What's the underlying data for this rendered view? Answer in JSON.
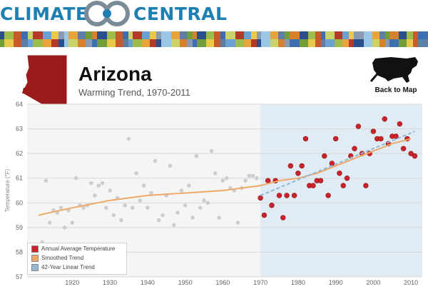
{
  "brand": {
    "left_word": "CLIMATE",
    "right_word": "CENTRAL",
    "brand_color": "#1e7fb3"
  },
  "header": {
    "state_name": "Arizona",
    "subtitle": "Warming Trend, 1970-2011",
    "back_to_map": "Back to Map",
    "state_color": "#9b1b1b"
  },
  "chart_data": {
    "type": "scatter",
    "title": "",
    "ylabel": "Temperature (°F)",
    "xlabel": "",
    "xlim": [
      1908,
      2013
    ],
    "ylim": [
      57,
      64
    ],
    "x_ticks": [
      1920,
      1930,
      1940,
      1950,
      1960,
      1970,
      1980,
      1990,
      2000,
      2010
    ],
    "y_ticks": [
      57,
      58,
      59,
      60,
      61,
      62,
      63,
      64
    ],
    "highlight_start": 1970,
    "grid": true,
    "legend_position": "bottom-left",
    "legend": [
      {
        "label": "Annual Average Temperature",
        "color": "#cc2229"
      },
      {
        "label": "Smoothed Trend",
        "color": "#f0a868"
      },
      {
        "label": "42-Year Linear Trend",
        "color": "#8fb8d8"
      }
    ],
    "series": [
      {
        "name": "Annual Average Temperature",
        "color": "#cc2229",
        "past_color": "#cdcdcd",
        "x": [
          1912,
          1913,
          1914,
          1915,
          1916,
          1917,
          1918,
          1919,
          1920,
          1921,
          1922,
          1923,
          1924,
          1925,
          1926,
          1927,
          1928,
          1929,
          1930,
          1931,
          1932,
          1933,
          1934,
          1935,
          1936,
          1937,
          1938,
          1939,
          1940,
          1941,
          1942,
          1943,
          1944,
          1945,
          1946,
          1947,
          1948,
          1949,
          1950,
          1951,
          1952,
          1953,
          1954,
          1955,
          1956,
          1957,
          1958,
          1959,
          1960,
          1961,
          1962,
          1963,
          1964,
          1965,
          1966,
          1967,
          1968,
          1969,
          1970,
          1971,
          1972,
          1973,
          1974,
          1975,
          1976,
          1977,
          1978,
          1979,
          1980,
          1981,
          1982,
          1983,
          1984,
          1985,
          1986,
          1987,
          1988,
          1989,
          1990,
          1991,
          1992,
          1993,
          1994,
          1995,
          1996,
          1997,
          1998,
          1999,
          2000,
          2001,
          2002,
          2003,
          2004,
          2005,
          2006,
          2007,
          2008,
          2009,
          2010,
          2011
        ],
        "y": [
          58.4,
          60.9,
          59.2,
          59.7,
          59.6,
          59.8,
          59.0,
          59.7,
          59.2,
          61.0,
          59.9,
          59.8,
          59.9,
          60.8,
          60.3,
          60.7,
          60.8,
          59.8,
          60.5,
          59.5,
          60.2,
          59.3,
          59.9,
          62.6,
          59.8,
          61.2,
          60.1,
          60.7,
          59.8,
          60.4,
          61.7,
          59.3,
          59.5,
          60.3,
          61.5,
          59.1,
          59.6,
          60.5,
          59.9,
          60.7,
          59.4,
          61.9,
          59.8,
          60.1,
          60.0,
          62.1,
          61.2,
          59.4,
          60.9,
          61.0,
          60.6,
          60.5,
          59.2,
          60.6,
          60.9,
          61.1,
          61.1,
          61.0,
          60.2,
          59.5,
          60.9,
          59.9,
          60.9,
          60.3,
          59.4,
          60.3,
          61.5,
          60.3,
          61.2,
          61.5,
          62.6,
          60.7,
          60.7,
          60.9,
          60.9,
          61.9,
          60.3,
          61.6,
          62.6,
          61.2,
          60.7,
          61.0,
          61.9,
          62.2,
          63.1,
          62.0,
          60.7,
          62.0,
          62.9,
          62.6,
          62.6,
          63.4,
          62.4,
          62.7,
          62.7,
          63.2,
          62.2,
          62.6,
          62.0,
          61.9
        ]
      },
      {
        "name": "Smoothed Trend",
        "color": "#f0a868",
        "x": [
          1911,
          1920,
          1930,
          1940,
          1950,
          1960,
          1965,
          1970,
          1975,
          1980,
          1985,
          1990,
          1995,
          2000,
          2005,
          2010
        ],
        "y": [
          59.5,
          59.8,
          60.1,
          60.3,
          60.4,
          60.5,
          60.6,
          60.7,
          60.9,
          61.0,
          61.2,
          61.5,
          61.8,
          62.1,
          62.4,
          62.6
        ]
      },
      {
        "name": "42-Year Linear Trend",
        "color": "#8fb8d8",
        "x": [
          1970,
          2011
        ],
        "y": [
          60.3,
          62.9
        ]
      }
    ]
  }
}
